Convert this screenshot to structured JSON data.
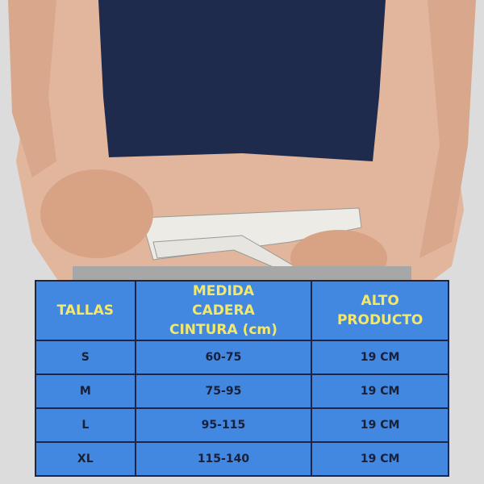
{
  "table": {
    "header": [
      "TALLAS",
      "MEDIDA CADERA CINTURA (cm)",
      "ALTO PRODUCTO"
    ],
    "rows": [
      [
        "S",
        "60-75",
        "19 CM"
      ],
      [
        "M",
        "75-95",
        "19 CM"
      ],
      [
        "L",
        "95-115",
        "19 CM"
      ],
      [
        "XL",
        "115-140",
        "19 CM"
      ]
    ]
  }
}
